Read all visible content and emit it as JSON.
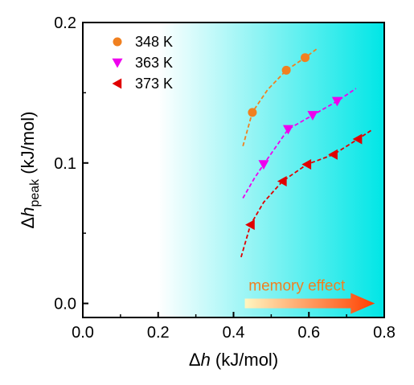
{
  "chart_data": {
    "type": "scatter",
    "xlabel_symbol": "Δh",
    "xlabel_italic": "h",
    "xlabel_unit": " (kJ/mol)",
    "ylabel_delta": "Δ",
    "ylabel_italic": "h",
    "ylabel_sub": "peak",
    "ylabel_unit": " (kJ/mol)",
    "xlim": [
      0.0,
      0.8
    ],
    "ylim": [
      -0.01,
      0.2
    ],
    "x_ticks": [
      0.0,
      0.2,
      0.4,
      0.6,
      0.8
    ],
    "x_tick_labels": [
      "0.0",
      "0.2",
      "0.4",
      "0.6",
      "0.8"
    ],
    "y_ticks": [
      0.0,
      0.1,
      0.2
    ],
    "y_tick_labels": [
      "0.0",
      "0.1",
      "0.2"
    ],
    "background_gradient": {
      "from": "#ffffff",
      "to": "#00e6e6",
      "start_x": 0.2,
      "end_x": 0.8
    },
    "legend_position": "top-left",
    "series": [
      {
        "name": "348 K",
        "marker": "circle",
        "color": "#f08020",
        "points": [
          [
            0.45,
            0.136
          ],
          [
            0.54,
            0.166
          ],
          [
            0.59,
            0.175
          ]
        ],
        "fit_curve": [
          [
            0.425,
            0.112
          ],
          [
            0.45,
            0.136
          ],
          [
            0.49,
            0.152
          ],
          [
            0.54,
            0.166
          ],
          [
            0.59,
            0.175
          ],
          [
            0.62,
            0.181
          ]
        ]
      },
      {
        "name": "363 K",
        "marker": "triangle-down",
        "color": "#ee00ee",
        "points": [
          [
            0.48,
            0.099
          ],
          [
            0.545,
            0.124
          ],
          [
            0.61,
            0.134
          ],
          [
            0.675,
            0.144
          ]
        ],
        "fit_curve": [
          [
            0.425,
            0.075
          ],
          [
            0.455,
            0.089
          ],
          [
            0.48,
            0.099
          ],
          [
            0.545,
            0.124
          ],
          [
            0.61,
            0.134
          ],
          [
            0.675,
            0.144
          ],
          [
            0.725,
            0.153
          ]
        ]
      },
      {
        "name": "373 K",
        "marker": "triangle-left",
        "color": "#e00000",
        "points": [
          [
            0.445,
            0.056
          ],
          [
            0.53,
            0.087
          ],
          [
            0.595,
            0.099
          ],
          [
            0.665,
            0.106
          ],
          [
            0.73,
            0.117
          ]
        ],
        "fit_curve": [
          [
            0.42,
            0.033
          ],
          [
            0.445,
            0.056
          ],
          [
            0.48,
            0.072
          ],
          [
            0.53,
            0.087
          ],
          [
            0.595,
            0.099
          ],
          [
            0.665,
            0.106
          ],
          [
            0.73,
            0.117
          ],
          [
            0.77,
            0.124
          ]
        ]
      }
    ],
    "annotation": {
      "text": "memory effect",
      "color": "#f08020",
      "arrow_from": [
        0.43,
        0.0
      ],
      "arrow_to": [
        0.775,
        0.0
      ],
      "arrow_color_start": "#fff6c0",
      "arrow_color_end": "#ff4000"
    }
  }
}
